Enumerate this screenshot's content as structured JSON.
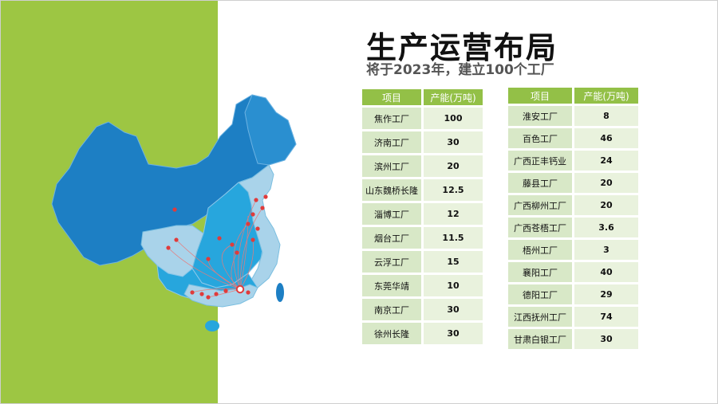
{
  "slide": {
    "title": "生产运营布局",
    "subtitle": "将于2023年，建立100个工厂"
  },
  "colors": {
    "accent_green": "#93c047",
    "band_green": "#9dc643",
    "map_dark_blue": "#1d7fc4",
    "map_mid_blue": "#27a6dd",
    "map_light_blue": "#a9d3ea",
    "marker_red": "#e03b3b"
  },
  "map": {
    "icon": "china-map-illustration",
    "marker_icon": "location-pin-icon"
  },
  "table_left": {
    "headers": [
      "项目",
      "产能(万吨)"
    ],
    "rows": [
      {
        "item": "焦作工厂",
        "value": "100"
      },
      {
        "item": "济南工厂",
        "value": "30"
      },
      {
        "item": "滨州工厂",
        "value": "20"
      },
      {
        "item": "山东魏桥长隆",
        "value": "12.5"
      },
      {
        "item": "淄博工厂",
        "value": "12"
      },
      {
        "item": "烟台工厂",
        "value": "11.5"
      },
      {
        "item": "云浮工厂",
        "value": "15"
      },
      {
        "item": "东莞华靖",
        "value": "10"
      },
      {
        "item": "南京工厂",
        "value": "30"
      },
      {
        "item": "徐州长隆",
        "value": "30"
      }
    ]
  },
  "table_right": {
    "headers": [
      "项目",
      "产能(万吨)"
    ],
    "rows": [
      {
        "item": "淮安工厂",
        "value": "8"
      },
      {
        "item": "百色工厂",
        "value": "46"
      },
      {
        "item": "广西正丰钙业",
        "value": "24"
      },
      {
        "item": "藤县工厂",
        "value": "20"
      },
      {
        "item": "广西柳州工厂",
        "value": "20"
      },
      {
        "item": "广西苍梧工厂",
        "value": "3.6"
      },
      {
        "item": "梧州工厂",
        "value": "3"
      },
      {
        "item": "襄阳工厂",
        "value": "40"
      },
      {
        "item": "德阳工厂",
        "value": "29"
      },
      {
        "item": "江西抚州工厂",
        "value": "74"
      },
      {
        "item": "甘肃白银工厂",
        "value": "30"
      }
    ]
  }
}
